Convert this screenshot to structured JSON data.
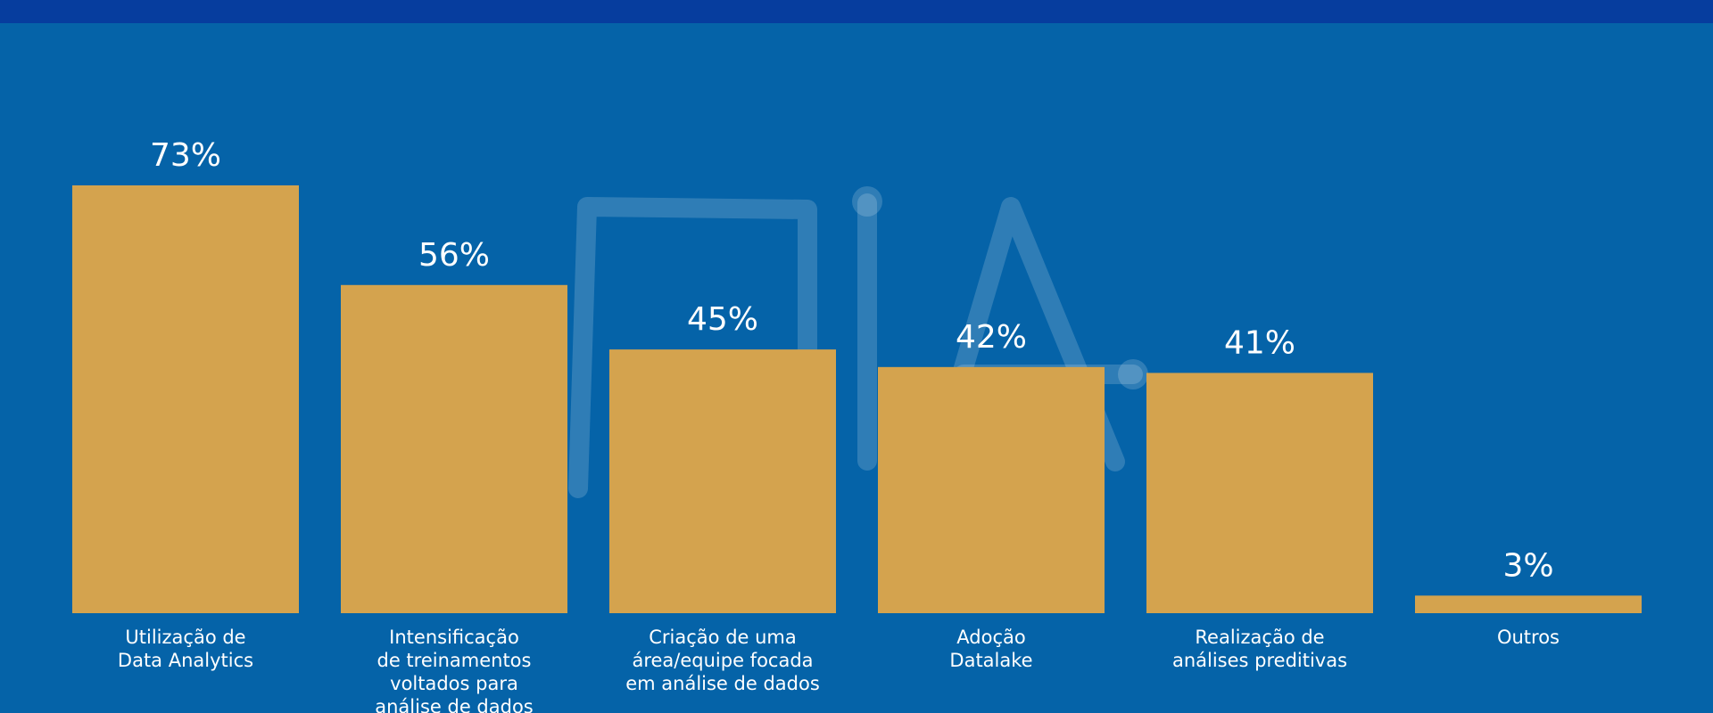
{
  "colors": {
    "background": "#0563a8",
    "top_band": "#063d9e",
    "bar": "#d4a34e",
    "text": "#ffffff"
  },
  "watermark_logo": "MIA",
  "chart_data": {
    "type": "bar",
    "categories": [
      [
        "Utilização de",
        "Data Analytics"
      ],
      [
        "Intensificação",
        "de treinamentos",
        "voltados para",
        "análise de dados"
      ],
      [
        "Criação de uma",
        "área/equipe focada",
        "em análise de dados"
      ],
      [
        "Adoção",
        "Datalake"
      ],
      [
        "Realização de",
        "análises preditivas"
      ],
      [
        "Outros"
      ]
    ],
    "values": [
      73,
      56,
      45,
      42,
      41,
      3
    ],
    "value_labels": [
      "73%",
      "56%",
      "45%",
      "42%",
      "41%",
      "3%"
    ],
    "ylim": [
      0,
      100
    ],
    "grid": false,
    "legend": "none"
  }
}
